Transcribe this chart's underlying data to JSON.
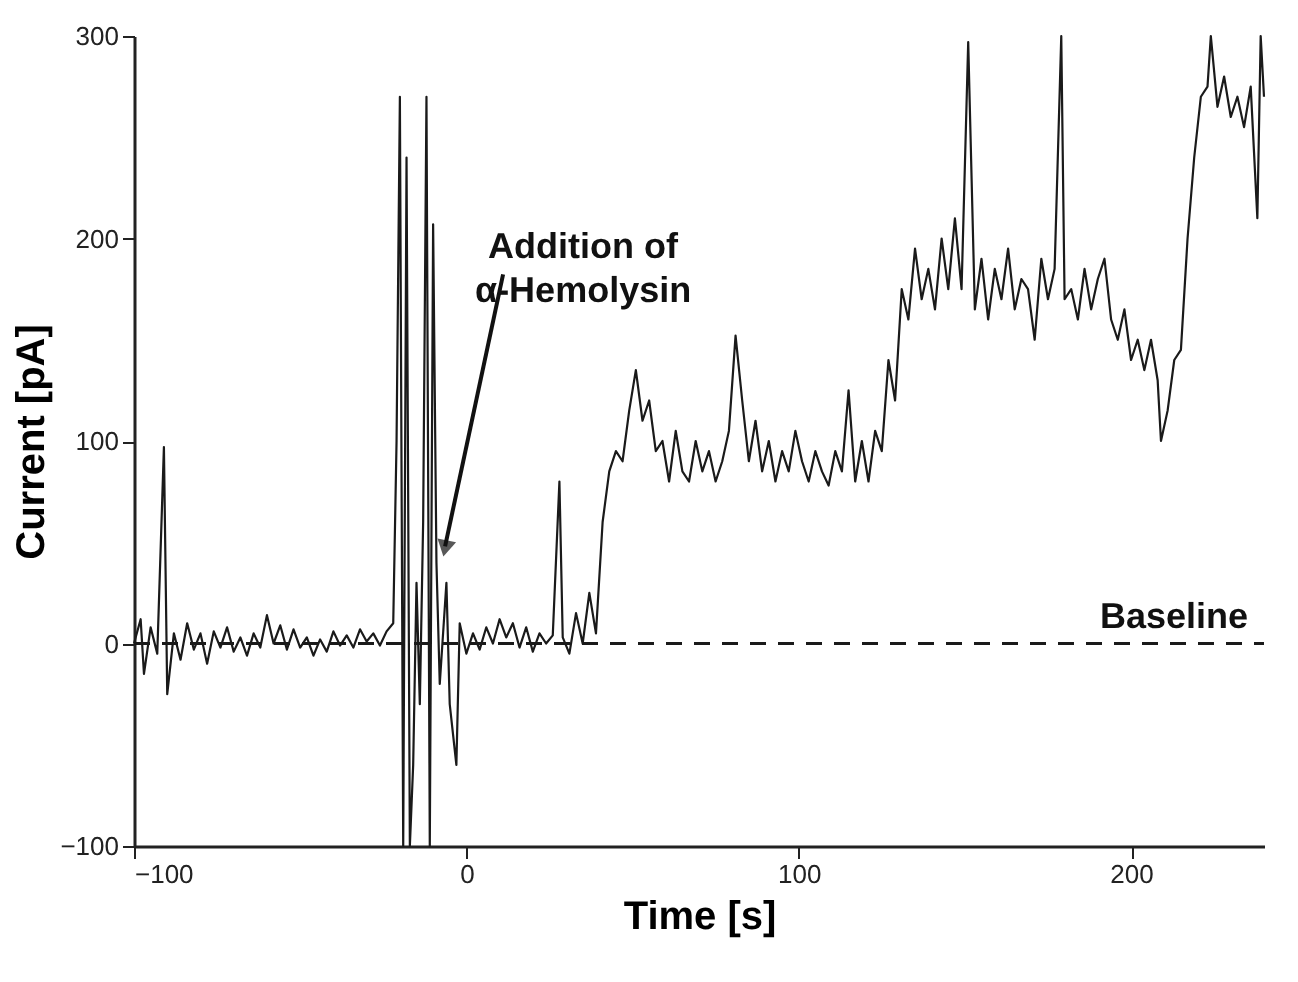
{
  "chart_data": {
    "type": "line",
    "xlabel": "Time [s]",
    "ylabel": "Current [pA]",
    "xlim": [
      -100,
      240
    ],
    "ylim": [
      -100,
      300
    ],
    "xticks": [
      -100,
      0,
      100,
      200
    ],
    "yticks": [
      -100,
      0,
      100,
      200,
      300
    ],
    "grid": false,
    "marker": "none",
    "line_style": "solid",
    "annotations": [
      {
        "text": "Addition of\nα-Hemolysin",
        "x": -7,
        "y": 44
      }
    ],
    "ref_lines": [
      {
        "axis": "y",
        "value": 0,
        "label": "Baseline",
        "line_style": "dashed",
        "color": "#1a1a1a"
      }
    ],
    "series": [
      {
        "color": "#1a1a1a",
        "x": [
          -100,
          -98,
          -97,
          -95,
          -93,
          -91,
          -90,
          -88,
          -86,
          -84,
          -82,
          -80,
          -78,
          -76,
          -74,
          -72,
          -70,
          -68,
          -66,
          -64,
          -62,
          -60,
          -58,
          -56,
          -54,
          -52,
          -50,
          -48,
          -46,
          -44,
          -42,
          -40,
          -38,
          -36,
          -34,
          -32,
          -30,
          -28,
          -26,
          -24,
          -22,
          -21,
          -20,
          -19,
          -18,
          -17,
          -16,
          -15,
          -14,
          -13,
          -12,
          -11,
          -10,
          -9,
          -8,
          -6,
          -5,
          -3,
          -2,
          0,
          2,
          4,
          6,
          8,
          10,
          12,
          14,
          16,
          18,
          20,
          22,
          24,
          26,
          28,
          29,
          31,
          33,
          35,
          37,
          39,
          41,
          43,
          45,
          47,
          49,
          51,
          53,
          55,
          57,
          59,
          61,
          63,
          65,
          67,
          69,
          71,
          73,
          75,
          77,
          79,
          81,
          83,
          85,
          87,
          89,
          91,
          93,
          95,
          97,
          99,
          101,
          103,
          105,
          107,
          109,
          111,
          113,
          115,
          117,
          119,
          121,
          123,
          125,
          127,
          129,
          131,
          133,
          135,
          137,
          139,
          141,
          143,
          145,
          147,
          149,
          151,
          153,
          155,
          157,
          159,
          161,
          163,
          165,
          167,
          169,
          171,
          173,
          175,
          177,
          179,
          180,
          182,
          184,
          186,
          188,
          190,
          192,
          194,
          196,
          198,
          200,
          202,
          204,
          206,
          208,
          209,
          211,
          213,
          215,
          217,
          219,
          221,
          223,
          224,
          226,
          228,
          230,
          232,
          234,
          236,
          238,
          239,
          240
        ],
        "values": [
          0,
          12,
          -15,
          8,
          -5,
          97,
          -25,
          5,
          -8,
          10,
          -3,
          5,
          -10,
          6,
          -2,
          8,
          -4,
          3,
          -6,
          5,
          -2,
          14,
          0,
          9,
          -3,
          7,
          -2,
          3,
          -6,
          2,
          -4,
          6,
          -1,
          4,
          -2,
          7,
          1,
          5,
          -1,
          6,
          10,
          100,
          270,
          -100,
          240,
          -100,
          -60,
          30,
          -30,
          60,
          270,
          -100,
          207,
          40,
          -20,
          30,
          -30,
          -60,
          10,
          -5,
          5,
          -3,
          8,
          0,
          12,
          3,
          10,
          -2,
          8,
          -4,
          5,
          0,
          4,
          80,
          3,
          -5,
          15,
          0,
          25,
          5,
          60,
          85,
          95,
          90,
          115,
          135,
          110,
          120,
          95,
          100,
          80,
          105,
          85,
          80,
          100,
          85,
          95,
          80,
          90,
          105,
          152,
          120,
          90,
          110,
          85,
          100,
          80,
          95,
          85,
          105,
          90,
          80,
          95,
          85,
          78,
          95,
          85,
          125,
          80,
          100,
          80,
          105,
          95,
          140,
          120,
          175,
          160,
          195,
          170,
          185,
          165,
          200,
          175,
          210,
          175,
          297,
          165,
          190,
          160,
          185,
          170,
          195,
          165,
          180,
          175,
          150,
          190,
          170,
          185,
          300,
          170,
          175,
          160,
          185,
          165,
          180,
          190,
          160,
          150,
          165,
          140,
          150,
          135,
          150,
          130,
          100,
          115,
          140,
          145,
          200,
          240,
          270,
          275,
          300,
          265,
          280,
          260,
          270,
          255,
          275,
          210,
          300,
          270
        ]
      }
    ]
  }
}
